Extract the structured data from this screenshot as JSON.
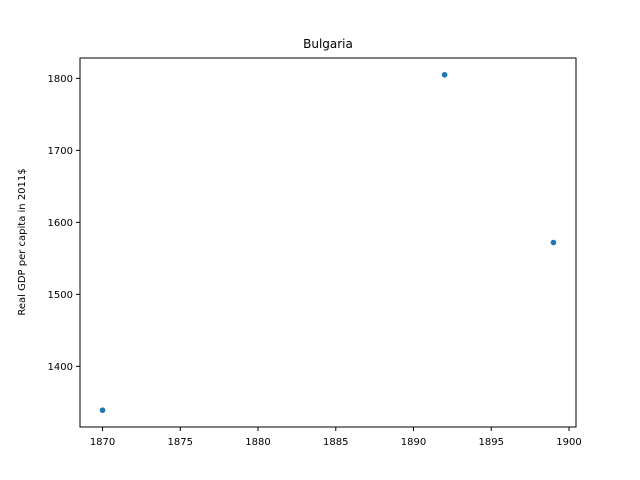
{
  "chart_data": {
    "type": "scatter",
    "title": "Bulgaria",
    "xlabel": "",
    "ylabel": "Real GDP per capita in 2011$",
    "x": [
      1870,
      1892,
      1899
    ],
    "y": [
      1339,
      1805,
      1572
    ],
    "xlim": [
      1868.55,
      1900.45
    ],
    "ylim": [
      1315.7,
      1828.3
    ],
    "xticks": [
      1870,
      1875,
      1880,
      1885,
      1890,
      1895,
      1900
    ],
    "yticks": [
      1400,
      1500,
      1600,
      1700,
      1800
    ],
    "grid": false,
    "marker_color": "#1f77b4"
  }
}
